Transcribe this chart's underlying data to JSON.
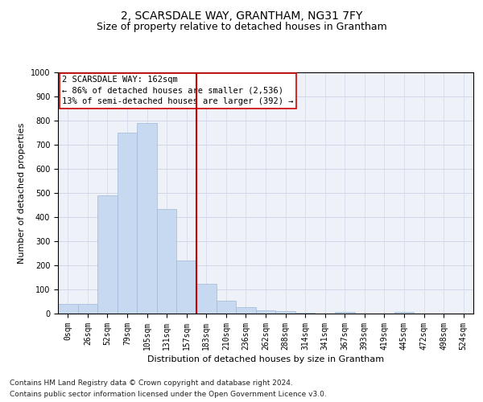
{
  "title": "2, SCARSDALE WAY, GRANTHAM, NG31 7FY",
  "subtitle": "Size of property relative to detached houses in Grantham",
  "xlabel": "Distribution of detached houses by size in Grantham",
  "ylabel": "Number of detached properties",
  "bin_labels": [
    "0sqm",
    "26sqm",
    "52sqm",
    "79sqm",
    "105sqm",
    "131sqm",
    "157sqm",
    "183sqm",
    "210sqm",
    "236sqm",
    "262sqm",
    "288sqm",
    "314sqm",
    "341sqm",
    "367sqm",
    "393sqm",
    "419sqm",
    "445sqm",
    "472sqm",
    "498sqm",
    "524sqm"
  ],
  "bar_heights": [
    40,
    40,
    490,
    750,
    790,
    435,
    220,
    125,
    55,
    27,
    15,
    10,
    5,
    0,
    8,
    0,
    0,
    7,
    0,
    0,
    0
  ],
  "bar_color": "#c6d9f0",
  "bar_edge_color": "#a0b8d8",
  "grid_color": "#d0d8e8",
  "background_color": "#eef2f8",
  "vline_x": 6.5,
  "vline_color": "#cc0000",
  "annotation_text": "2 SCARSDALE WAY: 162sqm\n← 86% of detached houses are smaller (2,536)\n13% of semi-detached houses are larger (392) →",
  "annotation_box_color": "#ffffff",
  "annotation_box_edge": "#cc0000",
  "ylim": [
    0,
    1000
  ],
  "yticks": [
    0,
    100,
    200,
    300,
    400,
    500,
    600,
    700,
    800,
    900,
    1000
  ],
  "footnote1": "Contains HM Land Registry data © Crown copyright and database right 2024.",
  "footnote2": "Contains public sector information licensed under the Open Government Licence v3.0.",
  "title_fontsize": 10,
  "subtitle_fontsize": 9,
  "axis_label_fontsize": 8,
  "tick_fontsize": 7,
  "annotation_fontsize": 7.5,
  "footnote_fontsize": 6.5
}
